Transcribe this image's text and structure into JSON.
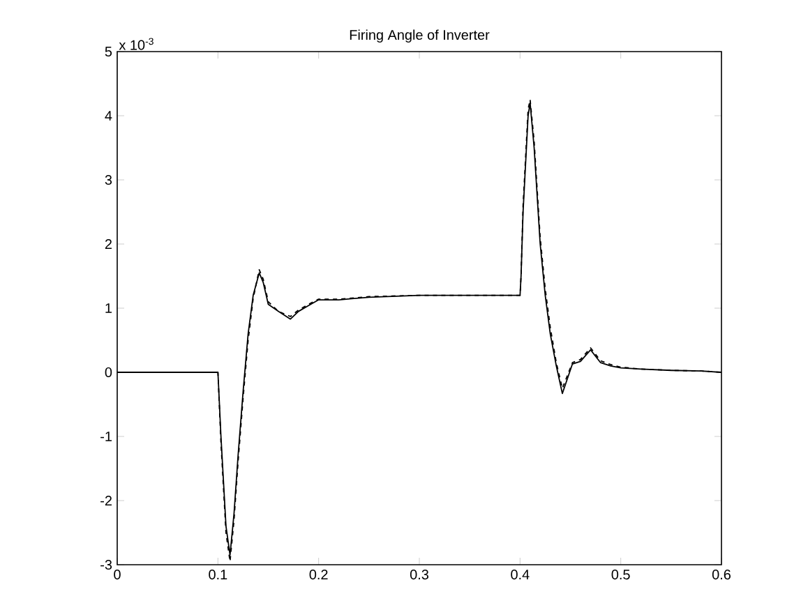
{
  "chart_data": {
    "type": "line",
    "title": "Firing Angle of Inverter",
    "annotations": [
      "x 10$^{-3}$"
    ],
    "xlim": [
      0,
      0.6
    ],
    "xticks": [
      0,
      0.1,
      0.2,
      0.3,
      0.4,
      0.5,
      0.6
    ],
    "ylim": [
      -3,
      5
    ],
    "yticks": [
      -3,
      -2,
      -1,
      0,
      1,
      2,
      3,
      4,
      5
    ],
    "grid": false,
    "marker": "none",
    "series": [
      {
        "color": "#000000",
        "line_style": "solid",
        "x": [
          0,
          0.1,
          0.103,
          0.108,
          0.112,
          0.116,
          0.12,
          0.125,
          0.13,
          0.135,
          0.141,
          0.145,
          0.15,
          0.16,
          0.172,
          0.18,
          0.19,
          0.2,
          0.22,
          0.25,
          0.3,
          0.35,
          0.4,
          0.401,
          0.403,
          0.408,
          0.41,
          0.414,
          0.42,
          0.425,
          0.43,
          0.436,
          0.442,
          0.447,
          0.452,
          0.46,
          0.47,
          0.48,
          0.49,
          0.5,
          0.52,
          0.55,
          0.58,
          0.6
        ],
        "values": [
          0,
          0,
          -1.0,
          -2.4,
          -2.85,
          -2.2,
          -1.3,
          -0.3,
          0.6,
          1.2,
          1.55,
          1.4,
          1.06,
          0.95,
          0.83,
          0.95,
          1.04,
          1.13,
          1.13,
          1.17,
          1.2,
          1.2,
          1.2,
          1.5,
          2.5,
          4.0,
          4.2,
          3.5,
          2.0,
          1.2,
          0.6,
          0.1,
          -0.33,
          -0.1,
          0.13,
          0.17,
          0.35,
          0.15,
          0.1,
          0.07,
          0.05,
          0.03,
          0.02,
          0.0
        ]
      },
      {
        "color": "#000000",
        "line_style": "dashed",
        "x": [
          0,
          0.1,
          0.103,
          0.108,
          0.112,
          0.116,
          0.12,
          0.125,
          0.13,
          0.135,
          0.141,
          0.145,
          0.15,
          0.16,
          0.172,
          0.18,
          0.19,
          0.2,
          0.22,
          0.25,
          0.3,
          0.35,
          0.4,
          0.401,
          0.403,
          0.408,
          0.41,
          0.414,
          0.42,
          0.425,
          0.43,
          0.436,
          0.442,
          0.447,
          0.452,
          0.46,
          0.47,
          0.48,
          0.49,
          0.5,
          0.52,
          0.55,
          0.58,
          0.6
        ],
        "values": [
          0,
          0,
          -1.1,
          -2.5,
          -2.95,
          -2.3,
          -1.4,
          -0.4,
          0.5,
          1.15,
          1.6,
          1.45,
          1.1,
          0.95,
          0.87,
          0.97,
          1.06,
          1.14,
          1.14,
          1.18,
          1.2,
          1.2,
          1.2,
          1.5,
          2.6,
          4.1,
          4.25,
          3.6,
          2.1,
          1.3,
          0.7,
          0.15,
          -0.25,
          -0.05,
          0.15,
          0.2,
          0.38,
          0.18,
          0.12,
          0.08,
          0.05,
          0.03,
          0.02,
          0.0
        ]
      }
    ]
  }
}
